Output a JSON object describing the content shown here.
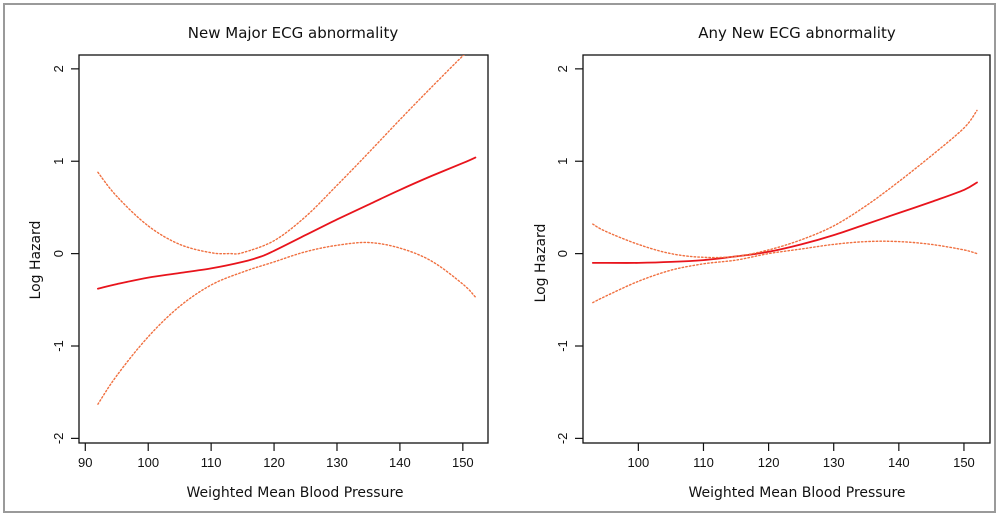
{
  "chart_data": [
    {
      "type": "line",
      "title": "New Major ECG abnormality",
      "xlabel": "Weighted Mean Blood Pressure",
      "ylabel": "Log Hazard",
      "xlim": [
        89,
        154
      ],
      "ylim": [
        -2.05,
        2.15
      ],
      "xticks": [
        90,
        100,
        110,
        120,
        130,
        140,
        150
      ],
      "yticks": [
        -2,
        -1,
        0,
        1,
        2
      ],
      "grid": false,
      "series": [
        {
          "style": "solid",
          "color": "#e8141c",
          "x": [
            92,
            95,
            100,
            105,
            110,
            115,
            118,
            120,
            125,
            130,
            135,
            140,
            145,
            150,
            152
          ],
          "y": [
            -0.38,
            -0.33,
            -0.26,
            -0.21,
            -0.16,
            -0.09,
            -0.03,
            0.03,
            0.2,
            0.37,
            0.53,
            0.69,
            0.84,
            0.98,
            1.04
          ]
        },
        {
          "style": "dotted",
          "color": "#f07040",
          "x": [
            92,
            95,
            100,
            105,
            110,
            113,
            115,
            120,
            125,
            130,
            135,
            140,
            145,
            150,
            151.5
          ],
          "y": [
            0.88,
            0.62,
            0.3,
            0.1,
            0.01,
            0.0,
            0.01,
            0.14,
            0.4,
            0.74,
            1.09,
            1.45,
            1.8,
            2.14,
            2.22
          ]
        },
        {
          "style": "dotted",
          "color": "#f07040",
          "x": [
            92,
            95,
            100,
            105,
            110,
            115,
            120,
            125,
            130,
            135,
            140,
            145,
            150,
            152
          ],
          "y": [
            -1.63,
            -1.32,
            -0.9,
            -0.57,
            -0.34,
            -0.2,
            -0.09,
            0.02,
            0.09,
            0.12,
            0.06,
            -0.08,
            -0.33,
            -0.47
          ]
        }
      ]
    },
    {
      "type": "line",
      "title": "Any New ECG abnormality",
      "xlabel": "Weighted Mean Blood Pressure",
      "ylabel": "Log Hazard",
      "xlim": [
        91.5,
        154
      ],
      "ylim": [
        -2.05,
        2.15
      ],
      "xticks": [
        100,
        110,
        120,
        130,
        140,
        150
      ],
      "yticks": [
        -2,
        -1,
        0,
        1,
        2
      ],
      "grid": false,
      "series": [
        {
          "style": "solid",
          "color": "#e8141c",
          "x": [
            93,
            95,
            100,
            105,
            110,
            115,
            120,
            125,
            130,
            135,
            140,
            145,
            150,
            152
          ],
          "y": [
            -0.1,
            -0.1,
            -0.1,
            -0.09,
            -0.07,
            -0.03,
            0.02,
            0.1,
            0.2,
            0.32,
            0.44,
            0.56,
            0.69,
            0.77
          ]
        },
        {
          "style": "dotted",
          "color": "#f07040",
          "x": [
            93,
            95,
            100,
            105,
            110,
            115,
            120,
            125,
            130,
            135,
            140,
            145,
            150,
            152
          ],
          "y": [
            0.32,
            0.24,
            0.1,
            0.0,
            -0.04,
            -0.03,
            0.04,
            0.15,
            0.3,
            0.52,
            0.78,
            1.06,
            1.36,
            1.55
          ]
        },
        {
          "style": "dotted",
          "color": "#f07040",
          "x": [
            93,
            95,
            100,
            105,
            110,
            115,
            120,
            125,
            130,
            135,
            140,
            145,
            150,
            152
          ],
          "y": [
            -0.53,
            -0.46,
            -0.3,
            -0.18,
            -0.11,
            -0.07,
            0.0,
            0.05,
            0.1,
            0.13,
            0.13,
            0.1,
            0.04,
            0.0
          ]
        }
      ]
    }
  ]
}
